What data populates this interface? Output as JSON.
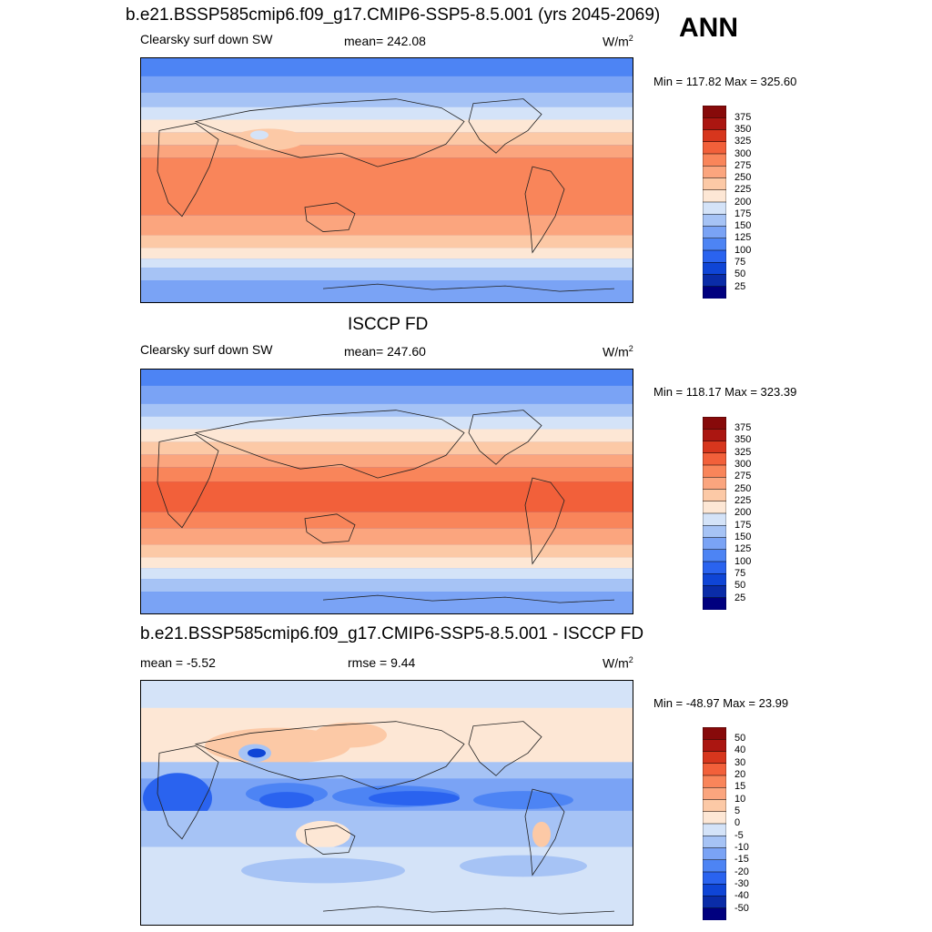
{
  "title_top": "b.e21.BSSP585cmip6.f09_g17.CMIP6-SSP5-8.5.001 (yrs 2045-2069)",
  "season": "ANN",
  "panels": [
    {
      "id": "model",
      "title": "",
      "variable": "Clearsky surf down SW",
      "stat": "mean= 242.08",
      "units": "W/m",
      "units_sup": "2",
      "minmax": "Min = 117.82 Max = 325.60",
      "colorbar_labels": [
        "375",
        "350",
        "325",
        "300",
        "275",
        "250",
        "225",
        "200",
        "175",
        "150",
        "125",
        "100",
        "75",
        "50",
        "25"
      ]
    },
    {
      "id": "obs",
      "title": "ISCCP FD",
      "variable": "Clearsky surf down SW",
      "stat": "mean= 247.60",
      "units": "W/m",
      "units_sup": "2",
      "minmax": "Min = 118.17 Max = 323.39",
      "colorbar_labels": [
        "375",
        "350",
        "325",
        "300",
        "275",
        "250",
        "225",
        "200",
        "175",
        "150",
        "125",
        "100",
        "75",
        "50",
        "25"
      ]
    },
    {
      "id": "diff",
      "title": "b.e21.BSSP585cmip6.f09_g17.CMIP6-SSP5-8.5.001 - ISCCP FD",
      "stat_left": "mean =  -5.52",
      "stat_mid": "rmse =   9.44",
      "units": "W/m",
      "units_sup": "2",
      "minmax": "Min = -48.97 Max =  23.99",
      "colorbar_labels": [
        "50",
        "40",
        "30",
        "20",
        "15",
        "10",
        "5",
        "0",
        "-5",
        "-10",
        "-15",
        "-20",
        "-30",
        "-40",
        "-50"
      ]
    }
  ],
  "colors": {
    "abs_scale": [
      "#00007f",
      "#0a2ca8",
      "#0f45d6",
      "#2a63ef",
      "#4d84f4",
      "#7aa3f5",
      "#a6c3f5",
      "#d4e3f8",
      "#fde7d5",
      "#fcc9a6",
      "#fba57e",
      "#f9855a",
      "#f2603a",
      "#d7361d",
      "#ab1611",
      "#870a0a"
    ],
    "diff_scale": [
      "#00007f",
      "#0a2ca8",
      "#0f45d6",
      "#2a63ef",
      "#4d84f4",
      "#7aa3f5",
      "#a6c3f5",
      "#d4e3f8",
      "#fde7d5",
      "#fcc9a6",
      "#fba57e",
      "#f9855a",
      "#f2603a",
      "#d7361d",
      "#ab1611",
      "#870a0a"
    ]
  }
}
